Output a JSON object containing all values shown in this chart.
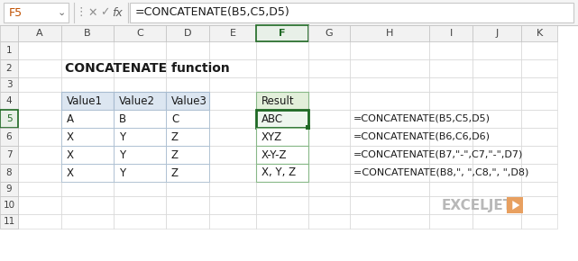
{
  "title": "CONCATENATE function",
  "formula_bar_cell": "F5",
  "formula_bar_formula": "=CONCATENATE(B5,C5,D5)",
  "col_labels": [
    "A",
    "B",
    "C",
    "D",
    "E",
    "F",
    "G",
    "H",
    "I",
    "J",
    "K"
  ],
  "row_labels": [
    "1",
    "2",
    "3",
    "4",
    "5",
    "6",
    "7",
    "8",
    "9",
    "10",
    "11"
  ],
  "table1_headers": [
    "Value1",
    "Value2",
    "Value3"
  ],
  "table1_header_bg": "#dce6f1",
  "table1_data": [
    [
      "A",
      "B",
      "C"
    ],
    [
      "X",
      "Y",
      "Z"
    ],
    [
      "X",
      "Y",
      "Z"
    ],
    [
      "X",
      "Y",
      "Z"
    ]
  ],
  "table2_header": "Result",
  "table2_header_bg": "#e2efda",
  "table2_data": [
    "ABC",
    "XYZ",
    "X-Y-Z",
    "X, Y, Z"
  ],
  "formulas": [
    "=CONCATENATE(B5,C5,D5)",
    "=CONCATENATE(B6,C6,D6)",
    "=CONCATENATE(B7,\"-\",C7,\"-\",D7)",
    "=CONCATENATE(B8,\", \",C8,\", \",D8)"
  ],
  "selected_cell_border": "#1e6823",
  "active_col_header_bg": "#e8f0e8",
  "active_col_header_border": "#1e6823",
  "active_row_header_bg": "#e8f0e8",
  "active_row_header_border": "#1e6823",
  "col_header_bg": "#f2f2f2",
  "row_header_bg": "#f2f2f2",
  "grid_line_color": "#d0d0d0",
  "header_border_color": "#c0c0c0",
  "exceljet_gray": "#b8b8b8",
  "exceljet_orange": "#e8a060",
  "fb_bg": "#f5f5f5",
  "fb_border": "#c8c8c8",
  "cell_name_color": "#c05000"
}
